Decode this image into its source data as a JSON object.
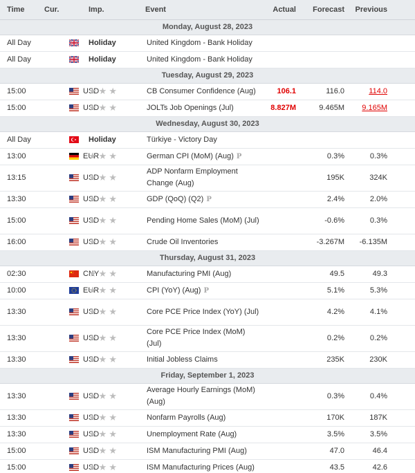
{
  "headers": {
    "time": "Time",
    "cur": "Cur.",
    "imp": "Imp.",
    "event": "Event",
    "actual": "Actual",
    "forecast": "Forecast",
    "previous": "Previous"
  },
  "sections": [
    {
      "day": "Monday, August 28, 2023",
      "rows": [
        {
          "time": "All Day",
          "flag": "gb-flag-icon",
          "cur": "",
          "holiday": "Holiday",
          "event": "United Kingdom - Bank Holiday",
          "actual": "",
          "forecast": "",
          "previous": "",
          "tall": false
        },
        {
          "time": "All Day",
          "flag": "gb-flag-icon",
          "cur": "",
          "holiday": "Holiday",
          "event": "United Kingdom - Bank Holiday",
          "actual": "",
          "forecast": "",
          "previous": "",
          "tall": false
        }
      ]
    },
    {
      "day": "Tuesday, August 29, 2023",
      "rows": [
        {
          "time": "15:00",
          "flag": "us-flag-icon",
          "cur": "USD",
          "stars": 3,
          "event": "CB Consumer Confidence (Aug)",
          "actual": "106.1",
          "actualRed": true,
          "forecast": "116.0",
          "previous": "114.0",
          "prevRevised": true,
          "tall": false
        },
        {
          "time": "15:00",
          "flag": "us-flag-icon",
          "cur": "USD",
          "stars": 3,
          "event": "JOLTs Job Openings (Jul)",
          "actual": "8.827M",
          "actualRed": true,
          "forecast": "9.465M",
          "previous": "9.165M",
          "prevRevised": true,
          "tall": false
        }
      ]
    },
    {
      "day": "Wednesday, August 30, 2023",
      "rows": [
        {
          "time": "All Day",
          "flag": "tr-flag-icon",
          "cur": "",
          "holiday": "Holiday",
          "event": "Türkiye - Victory Day",
          "actual": "",
          "forecast": "",
          "previous": "",
          "tall": false
        },
        {
          "time": "13:00",
          "flag": "de-flag-icon",
          "cur": "EUR",
          "stars": 3,
          "event": "German CPI (MoM) (Aug)",
          "prelim": true,
          "actual": "",
          "forecast": "0.3%",
          "previous": "0.3%",
          "tall": false
        },
        {
          "time": "13:15",
          "flag": "us-flag-icon",
          "cur": "USD",
          "stars": 3,
          "event": "ADP Nonfarm Employment Change (Aug)",
          "actual": "",
          "forecast": "195K",
          "previous": "324K",
          "tall": true
        },
        {
          "time": "13:30",
          "flag": "us-flag-icon",
          "cur": "USD",
          "stars": 3,
          "event": "GDP (QoQ) (Q2)",
          "prelim": true,
          "actual": "",
          "forecast": "2.4%",
          "previous": "2.0%",
          "tall": false
        },
        {
          "time": "15:00",
          "flag": "us-flag-icon",
          "cur": "USD",
          "stars": 3,
          "event": "Pending Home Sales (MoM) (Jul)",
          "actual": "",
          "forecast": "-0.6%",
          "previous": "0.3%",
          "tall": true
        },
        {
          "time": "16:00",
          "flag": "us-flag-icon",
          "cur": "USD",
          "stars": 3,
          "event": "Crude Oil Inventories",
          "actual": "",
          "forecast": "-3.267M",
          "previous": "-6.135M",
          "tall": false
        }
      ]
    },
    {
      "day": "Thursday, August 31, 2023",
      "rows": [
        {
          "time": "02:30",
          "flag": "cn-flag-icon",
          "cur": "CNY",
          "stars": 3,
          "event": "Manufacturing PMI (Aug)",
          "actual": "",
          "forecast": "49.5",
          "previous": "49.3",
          "tall": false
        },
        {
          "time": "10:00",
          "flag": "eu-flag-icon",
          "cur": "EUR",
          "stars": 3,
          "event": "CPI (YoY) (Aug)",
          "prelim": true,
          "actual": "",
          "forecast": "5.1%",
          "previous": "5.3%",
          "tall": false
        },
        {
          "time": "13:30",
          "flag": "us-flag-icon",
          "cur": "USD",
          "stars": 3,
          "event": "Core PCE Price Index (YoY) (Jul)",
          "actual": "",
          "forecast": "4.2%",
          "previous": "4.1%",
          "tall": true
        },
        {
          "time": "13:30",
          "flag": "us-flag-icon",
          "cur": "USD",
          "stars": 3,
          "event": "Core PCE Price Index (MoM) (Jul)",
          "actual": "",
          "forecast": "0.2%",
          "previous": "0.2%",
          "tall": true
        },
        {
          "time": "13:30",
          "flag": "us-flag-icon",
          "cur": "USD",
          "stars": 3,
          "event": "Initial Jobless Claims",
          "actual": "",
          "forecast": "235K",
          "previous": "230K",
          "tall": false
        }
      ]
    },
    {
      "day": "Friday, September 1, 2023",
      "rows": [
        {
          "time": "13:30",
          "flag": "us-flag-icon",
          "cur": "USD",
          "stars": 3,
          "event": "Average Hourly Earnings (MoM) (Aug)",
          "actual": "",
          "forecast": "0.3%",
          "previous": "0.4%",
          "tall": true
        },
        {
          "time": "13:30",
          "flag": "us-flag-icon",
          "cur": "USD",
          "stars": 3,
          "event": "Nonfarm Payrolls (Aug)",
          "actual": "",
          "forecast": "170K",
          "previous": "187K",
          "tall": false
        },
        {
          "time": "13:30",
          "flag": "us-flag-icon",
          "cur": "USD",
          "stars": 3,
          "event": "Unemployment Rate (Aug)",
          "actual": "",
          "forecast": "3.5%",
          "previous": "3.5%",
          "tall": false
        },
        {
          "time": "15:00",
          "flag": "us-flag-icon",
          "cur": "USD",
          "stars": 3,
          "event": "ISM Manufacturing PMI (Aug)",
          "actual": "",
          "forecast": "47.0",
          "previous": "46.4",
          "tall": false
        },
        {
          "time": "15:00",
          "flag": "us-flag-icon",
          "cur": "USD",
          "stars": 3,
          "event": "ISM Manufacturing Prices (Aug)",
          "actual": "",
          "forecast": "43.5",
          "previous": "42.6",
          "tall": false
        }
      ]
    }
  ],
  "prelim_glyph": "P",
  "star_glyph": "★"
}
